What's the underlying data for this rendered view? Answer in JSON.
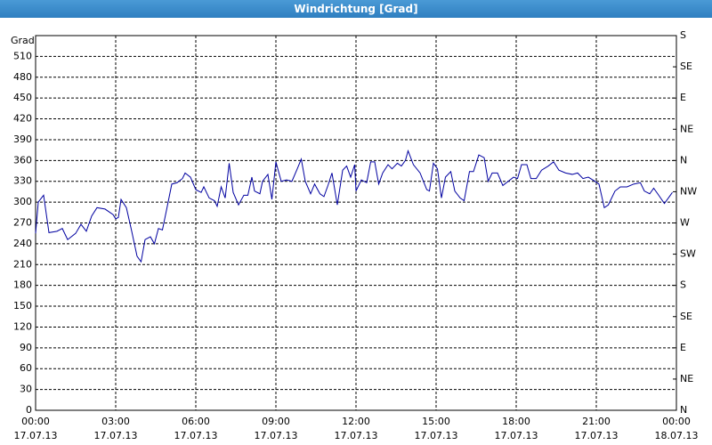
{
  "chart_data": {
    "type": "line",
    "title": "Windrichtung [Grad]",
    "y_label": "Grad",
    "xlim": [
      0,
      24
    ],
    "ylim": [
      0,
      540
    ],
    "y2lim": [
      0,
      540
    ],
    "xticks": [
      {
        "value": 0,
        "label": "00:00"
      },
      {
        "value": 3,
        "label": "03:00"
      },
      {
        "value": 6,
        "label": "06:00"
      },
      {
        "value": 9,
        "label": "09:00"
      },
      {
        "value": 12,
        "label": "12:00"
      },
      {
        "value": 15,
        "label": "15:00"
      },
      {
        "value": 18,
        "label": "18:00"
      },
      {
        "value": 21,
        "label": "21:00"
      },
      {
        "value": 24,
        "label": "00:00"
      }
    ],
    "xtick_dates": [
      "17.07.13",
      "17.07.13",
      "17.07.13",
      "17.07.13",
      "17.07.13",
      "17.07.13",
      "17.07.13",
      "17.07.13",
      "18.07.13"
    ],
    "yticks": [
      0,
      30,
      60,
      90,
      120,
      150,
      180,
      210,
      240,
      270,
      300,
      330,
      360,
      390,
      420,
      450,
      480,
      510
    ],
    "y2ticks": [
      {
        "value": 0,
        "label": "N"
      },
      {
        "value": 45,
        "label": "NE"
      },
      {
        "value": 90,
        "label": "E"
      },
      {
        "value": 135,
        "label": "SE"
      },
      {
        "value": 180,
        "label": "S"
      },
      {
        "value": 225,
        "label": "SW"
      },
      {
        "value": 270,
        "label": "W"
      },
      {
        "value": 315,
        "label": "NW"
      },
      {
        "value": 360,
        "label": "N"
      },
      {
        "value": 405,
        "label": "NE"
      },
      {
        "value": 450,
        "label": "E"
      },
      {
        "value": 495,
        "label": "SE"
      },
      {
        "value": 540,
        "label": "S"
      }
    ],
    "grid": true,
    "series": [
      {
        "color": "#0000a0",
        "x": [
          0,
          0.1,
          0.3,
          0.5,
          0.8,
          1.0,
          1.2,
          1.5,
          1.7,
          1.9,
          2.1,
          2.3,
          2.6,
          2.9,
          3.0,
          3.1,
          3.2,
          3.4,
          3.6,
          3.8,
          3.95,
          4.1,
          4.3,
          4.45,
          4.6,
          4.75,
          4.9,
          5.1,
          5.3,
          5.5,
          5.6,
          5.8,
          6.0,
          6.2,
          6.3,
          6.5,
          6.7,
          6.8,
          6.95,
          7.1,
          7.25,
          7.4,
          7.6,
          7.8,
          7.95,
          8.1,
          8.2,
          8.4,
          8.5,
          8.7,
          8.85,
          9.0,
          9.2,
          9.4,
          9.6,
          9.8,
          9.95,
          10.1,
          10.3,
          10.45,
          10.65,
          10.8,
          10.95,
          11.1,
          11.3,
          11.5,
          11.65,
          11.8,
          11.95,
          12.0,
          12.2,
          12.4,
          12.55,
          12.7,
          12.85,
          13.0,
          13.2,
          13.35,
          13.55,
          13.7,
          13.85,
          13.95,
          14.15,
          14.4,
          14.65,
          14.75,
          14.9,
          15.05,
          15.2,
          15.35,
          15.55,
          15.7,
          15.9,
          16.05,
          16.25,
          16.4,
          16.6,
          16.8,
          16.95,
          17.1,
          17.3,
          17.5,
          17.7,
          17.9,
          18.05,
          18.2,
          18.4,
          18.55,
          18.75,
          18.95,
          19.2,
          19.4,
          19.6,
          19.85,
          20.1,
          20.3,
          20.5,
          20.7,
          20.95,
          21.1,
          21.3,
          21.45,
          21.7,
          21.9,
          22.15,
          22.4,
          22.65,
          22.8,
          23.0,
          23.15,
          23.3,
          23.55,
          23.7,
          23.85
        ],
        "values": [
          255,
          300,
          310,
          256,
          258,
          262,
          246,
          255,
          268,
          258,
          280,
          292,
          290,
          282,
          276,
          278,
          304,
          292,
          258,
          222,
          214,
          246,
          250,
          240,
          262,
          260,
          288,
          326,
          328,
          334,
          342,
          336,
          318,
          314,
          322,
          306,
          302,
          294,
          322,
          306,
          356,
          314,
          296,
          310,
          310,
          336,
          316,
          312,
          330,
          340,
          304,
          358,
          330,
          332,
          330,
          348,
          362,
          330,
          312,
          326,
          312,
          308,
          324,
          342,
          296,
          346,
          352,
          336,
          354,
          316,
          332,
          328,
          358,
          358,
          326,
          342,
          354,
          348,
          356,
          352,
          360,
          374,
          354,
          342,
          318,
          316,
          356,
          348,
          306,
          336,
          344,
          316,
          306,
          302,
          344,
          344,
          368,
          364,
          330,
          342,
          342,
          324,
          330,
          336,
          334,
          354,
          354,
          334,
          334,
          346,
          352,
          358,
          346,
          342,
          340,
          342,
          334,
          336,
          330,
          326,
          292,
          296,
          316,
          322,
          322,
          326,
          328,
          316,
          312,
          320,
          312,
          298,
          306,
          314
        ]
      }
    ]
  }
}
